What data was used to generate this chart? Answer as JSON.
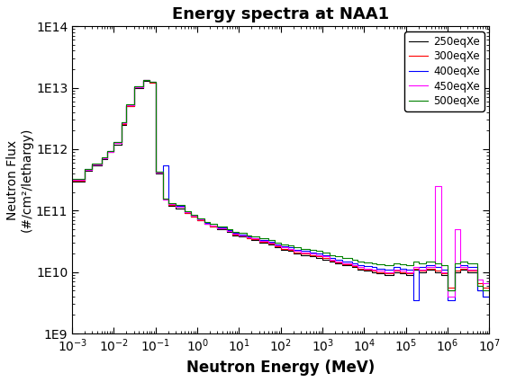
{
  "title": "Energy spectra at NAA1",
  "xlabel": "Neutron Energy (MeV)",
  "ylabel": "Neutron Flux\n(#/cm²/lethargy)",
  "xlim_log": [
    -3,
    7
  ],
  "ylim_log": [
    9,
    14
  ],
  "legend_labels": [
    "250eqXe",
    "300eqXe",
    "400eqXe",
    "450eqXe",
    "500eqXe"
  ],
  "legend_colors": [
    "black",
    "red",
    "blue",
    "magenta",
    "green"
  ],
  "bin_edges": [
    0.001,
    0.002,
    0.003,
    0.005,
    0.007,
    0.01,
    0.015,
    0.02,
    0.03,
    0.05,
    0.07,
    0.1,
    0.15,
    0.2,
    0.3,
    0.5,
    0.7,
    1.0,
    1.5,
    2.0,
    3.0,
    5.0,
    7.0,
    10.0,
    15.0,
    20.0,
    30.0,
    50.0,
    70.0,
    100.0,
    150.0,
    200.0,
    300.0,
    500.0,
    700.0,
    1000.0,
    1500.0,
    2000.0,
    3000.0,
    5000.0,
    7000.0,
    10000.0,
    15000.0,
    20000.0,
    30000.0,
    50000.0,
    70000.0,
    100000.0,
    150000.0,
    200000.0,
    300000.0,
    500000.0,
    700000.0,
    1000000.0,
    1500000.0,
    2000000.0,
    3000000.0,
    5000000.0,
    7000000.0,
    10000000.0
  ],
  "series": {
    "250eqXe": {
      "color": "black",
      "flux": [
        300000000000.0,
        450000000000.0,
        550000000000.0,
        700000000000.0,
        900000000000.0,
        1200000000000.0,
        2500000000000.0,
        5000000000000.0,
        10000000000000.0,
        13000000000000.0,
        12000000000000.0,
        400000000000.0,
        150000000000.0,
        120000000000.0,
        110000000000.0,
        90000000000.0,
        80000000000.0,
        70000000000.0,
        60000000000.0,
        55000000000.0,
        50000000000.0,
        45000000000.0,
        40000000000.0,
        38000000000.0,
        35000000000.0,
        33000000000.0,
        30000000000.0,
        28000000000.0,
        25000000000.0,
        23000000000.0,
        22000000000.0,
        20000000000.0,
        19000000000.0,
        18000000000.0,
        17000000000.0,
        16000000000.0,
        15000000000.0,
        14000000000.0,
        13000000000.0,
        12000000000.0,
        11000000000.0,
        10500000000.0,
        10000000000.0,
        9500000000.0,
        9000000000.0,
        10000000000.0,
        9500000000.0,
        9000000000.0,
        11000000000.0,
        10000000000.0,
        11000000000.0,
        10000000000.0,
        9000000000.0,
        5000000000.0,
        10000000000.0,
        11000000000.0,
        10000000000.0,
        5000000000.0,
        4000000000.0
      ]
    },
    "300eqXe": {
      "color": "red",
      "flux": [
        310000000000.0,
        460000000000.0,
        560000000000.0,
        710000000000.0,
        910000000000.0,
        1250000000000.0,
        2600000000000.0,
        5100000000000.0,
        10200000000000.0,
        13200000000000.0,
        12200000000000.0,
        410000000000.0,
        155000000000.0,
        125000000000.0,
        115000000000.0,
        92000000000.0,
        81000000000.0,
        71000000000.0,
        61000000000.0,
        56000000000.0,
        51000000000.0,
        46000000000.0,
        41000000000.0,
        39000000000.0,
        36000000000.0,
        34000000000.0,
        31000000000.0,
        29000000000.0,
        26000000000.0,
        24000000000.0,
        23000000000.0,
        21000000000.0,
        20000000000.0,
        19000000000.0,
        18000000000.0,
        17000000000.0,
        15500000000.0,
        14500000000.0,
        13500000000.0,
        12500000000.0,
        11500000000.0,
        11000000000.0,
        10500000000.0,
        10000000000.0,
        9500000000.0,
        10500000000.0,
        10000000000.0,
        9500000000.0,
        11500000000.0,
        10500000000.0,
        11500000000.0,
        10500000000.0,
        9500000000.0,
        5500000000.0,
        10500000000.0,
        11500000000.0,
        10500000000.0,
        6500000000.0,
        5500000000.0
      ]
    },
    "400eqXe": {
      "color": "blue",
      "flux": [
        320000000000.0,
        470000000000.0,
        570000000000.0,
        720000000000.0,
        920000000000.0,
        1300000000000.0,
        2700000000000.0,
        5200000000000.0,
        10400000000000.0,
        13400000000000.0,
        12400000000000.0,
        420000000000.0,
        550000000000.0,
        130000000000.0,
        120000000000.0,
        95000000000.0,
        83000000000.0,
        73000000000.0,
        63000000000.0,
        58000000000.0,
        53000000000.0,
        48000000000.0,
        43000000000.0,
        41000000000.0,
        38000000000.0,
        36000000000.0,
        33000000000.0,
        31000000000.0,
        28000000000.0,
        26000000000.0,
        25000000000.0,
        23000000000.0,
        22000000000.0,
        21000000000.0,
        20000000000.0,
        19000000000.0,
        17000000000.0,
        16000000000.0,
        15000000000.0,
        14000000000.0,
        13000000000.0,
        12500000000.0,
        12000000000.0,
        11500000000.0,
        11000000000.0,
        12000000000.0,
        11500000000.0,
        11000000000.0,
        3500000000.0,
        12000000000.0,
        13000000000.0,
        12000000000.0,
        11000000000.0,
        3500000000.0,
        12000000000.0,
        13000000000.0,
        12000000000.0,
        5000000000.0,
        4000000000.0
      ]
    },
    "450eqXe": {
      "color": "magenta",
      "flux": [
        315000000000.0,
        465000000000.0,
        565000000000.0,
        715000000000.0,
        915000000000.0,
        1270000000000.0,
        2650000000000.0,
        5150000000000.0,
        10300000000000.0,
        13300000000000.0,
        12300000000000.0,
        415000000000.0,
        152000000000.0,
        127000000000.0,
        117000000000.0,
        93000000000.0,
        82000000000.0,
        72000000000.0,
        62000000000.0,
        57000000000.0,
        52000000000.0,
        47000000000.0,
        42000000000.0,
        40000000000.0,
        37000000000.0,
        35000000000.0,
        32000000000.0,
        30000000000.0,
        27000000000.0,
        25000000000.0,
        24000000000.0,
        22000000000.0,
        21000000000.0,
        20000000000.0,
        19000000000.0,
        18000000000.0,
        16000000000.0,
        15000000000.0,
        14000000000.0,
        13000000000.0,
        12000000000.0,
        11500000000.0,
        11000000000.0,
        10500000000.0,
        10000000000.0,
        11000000000.0,
        10500000000.0,
        10000000000.0,
        12000000000.0,
        11000000000.0,
        12000000000.0,
        250000000000.0,
        10000000000.0,
        4000000000.0,
        50000000000.0,
        12000000000.0,
        11000000000.0,
        7500000000.0,
        6500000000.0
      ]
    },
    "500eqXe": {
      "color": "green",
      "flux": [
        330000000000.0,
        480000000000.0,
        580000000000.0,
        730000000000.0,
        930000000000.0,
        1320000000000.0,
        2750000000000.0,
        5300000000000.0,
        10500000000000.0,
        13500000000000.0,
        12500000000000.0,
        425000000000.0,
        157000000000.0,
        132000000000.0,
        122000000000.0,
        97000000000.0,
        85000000000.0,
        75000000000.0,
        65000000000.0,
        60000000000.0,
        55000000000.0,
        50000000000.0,
        45000000000.0,
        43000000000.0,
        40000000000.0,
        38000000000.0,
        35000000000.0,
        33000000000.0,
        30000000000.0,
        28000000000.0,
        27000000000.0,
        25000000000.0,
        24000000000.0,
        23000000000.0,
        22000000000.0,
        21000000000.0,
        19000000000.0,
        18000000000.0,
        17000000000.0,
        16000000000.0,
        15000000000.0,
        14500000000.0,
        14000000000.0,
        13500000000.0,
        13000000000.0,
        14000000000.0,
        13500000000.0,
        13000000000.0,
        15000000000.0,
        14000000000.0,
        15000000000.0,
        14000000000.0,
        13000000000.0,
        5000000000.0,
        14000000000.0,
        15000000000.0,
        14000000000.0,
        6000000000.0,
        5000000000.0
      ]
    }
  }
}
